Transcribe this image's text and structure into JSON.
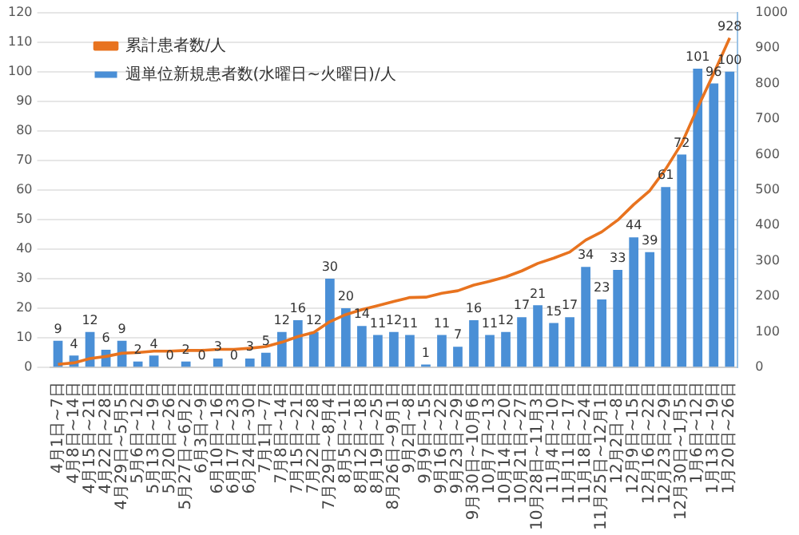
{
  "chart_data": {
    "type": "bar",
    "categories": [
      "4月1日~7日",
      "4月8日~14日",
      "4月15日~21日",
      "4月22日~28日",
      "4月29日~5月5日",
      "5月6日~12日",
      "5月13日~19日",
      "5月20日~26日",
      "5月27日~6月2日",
      "6月3日~9日",
      "6月10日~16日",
      "6月17日~23日",
      "6月24日~30日",
      "7月1日~7日",
      "7月8日~14日",
      "7月15日~21日",
      "7月22日~28日",
      "7月29日~8月4日",
      "8月5日~11日",
      "8月12日~18日",
      "8月19日~25日",
      "8月26日~9月1日",
      "9月2日~8日",
      "9月9日~15日",
      "9月16日~22日",
      "9月23日~29日",
      "9月30日~10月6日",
      "10月7日~13日",
      "10月14日~20日",
      "10月21日~27日",
      "10月28日~11月3日",
      "11月4日~10日",
      "11月11日~17日",
      "11月18日~24日",
      "11月25日~12月1日",
      "12月2日~8日",
      "12月9日~15日",
      "12月16日~22日",
      "12月23日~29日",
      "12月30日~1月5日",
      "1月6日~12日",
      "1月13日~19日",
      "1月20日~26日"
    ],
    "series": [
      {
        "name": "週単位新規患者数(水曜日~火曜日)/人",
        "color": "#4a8fd6",
        "values": [
          9,
          4,
          12,
          6,
          9,
          2,
          4,
          0,
          2,
          0,
          3,
          0,
          3,
          5,
          12,
          16,
          12,
          30,
          20,
          14,
          11,
          12,
          11,
          1,
          11,
          7,
          16,
          11,
          12,
          17,
          21,
          15,
          17,
          34,
          23,
          33,
          44,
          39,
          61,
          72,
          101,
          96,
          100
        ],
        "value_labels": [
          "9",
          "4",
          "12",
          "6",
          "9",
          "2",
          "4",
          "0",
          "2",
          "0",
          "3",
          "0",
          "3",
          "5",
          "12",
          "16",
          "12",
          "30",
          "20",
          "14",
          "11",
          "12",
          "11",
          "1",
          "11",
          "7",
          "16",
          "11",
          "12",
          "17",
          "21",
          "15",
          "17",
          "34",
          "23",
          "33",
          "44",
          "39",
          "61",
          "72",
          "101",
          "96",
          "100"
        ]
      },
      {
        "name": "累計患者数/人",
        "type": "line",
        "axis": "y2",
        "color": "#e8731f",
        "values": [
          9,
          13,
          25,
          31,
          40,
          42,
          46,
          46,
          48,
          48,
          51,
          51,
          54,
          59,
          71,
          87,
          99,
          129,
          149,
          163,
          174,
          186,
          197,
          198,
          209,
          216,
          232,
          243,
          255,
          272,
          293,
          308,
          325,
          359,
          382,
          415,
          459,
          498,
          559,
          631,
          732,
          828,
          928
        ],
        "value_labels": [
          null,
          null,
          null,
          null,
          null,
          null,
          null,
          null,
          null,
          null,
          null,
          null,
          null,
          null,
          null,
          null,
          null,
          null,
          null,
          null,
          null,
          null,
          null,
          null,
          null,
          null,
          null,
          null,
          null,
          null,
          null,
          null,
          null,
          null,
          null,
          null,
          null,
          null,
          null,
          null,
          null,
          null,
          "928"
        ]
      }
    ],
    "ylim": [
      0,
      120
    ],
    "yticks": [
      0,
      10,
      20,
      30,
      40,
      50,
      60,
      70,
      80,
      90,
      100,
      110,
      120
    ],
    "y2lim": [
      0,
      1000
    ],
    "y2ticks": [
      0,
      100,
      200,
      300,
      400,
      500,
      600,
      700,
      800,
      900,
      1000
    ],
    "grid": "y",
    "legend": "top left",
    "marker": "none"
  }
}
